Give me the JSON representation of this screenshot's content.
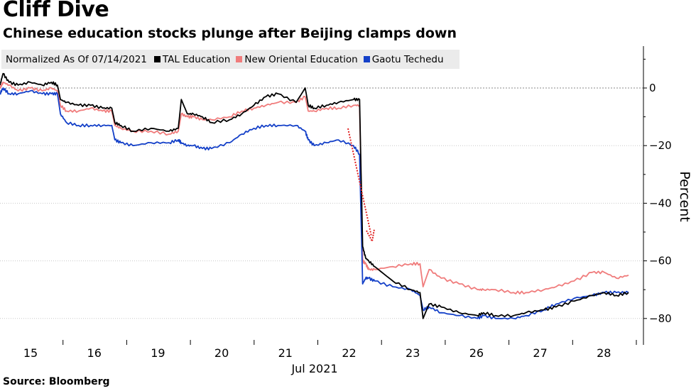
{
  "chart_data": {
    "type": "line",
    "title": "Cliff Dive",
    "subtitle": "Chinese education stocks plunge after Beijing clamps down",
    "legend_note": "Normalized As Of 07/14/2021",
    "source": "Source: Bloomberg",
    "ylabel": "Percent",
    "xlabel": "Jul 2021",
    "ylim": [
      -88,
      14
    ],
    "yticks": [
      0,
      -20,
      -40,
      -60,
      -80
    ],
    "ytick_labels": [
      "0",
      "−20",
      "−40",
      "−60",
      "−80"
    ],
    "x_range": [
      0,
      10.4
    ],
    "categories": [
      "15",
      "16",
      "19",
      "20",
      "21",
      "22",
      "23",
      "26",
      "27",
      "28"
    ],
    "annotation": "dotted red arrow indicating the plunge on Jul 22-23",
    "series": [
      {
        "name": "TAL Education",
        "color": "#000000",
        "x": [
          0.0,
          0.05,
          0.15,
          0.3,
          0.5,
          0.7,
          0.85,
          0.95,
          1.0,
          1.1,
          1.3,
          1.5,
          1.7,
          1.85,
          1.9,
          2.0,
          2.2,
          2.5,
          2.8,
          2.95,
          3.0,
          3.1,
          3.2,
          3.35,
          3.5,
          3.8,
          4.0,
          4.2,
          4.4,
          4.6,
          4.9,
          5.05,
          5.1,
          5.2,
          5.4,
          5.6,
          5.85,
          5.95,
          6.0,
          6.05,
          6.1,
          6.2,
          6.5,
          6.8,
          6.95,
          7.0,
          7.1,
          7.3,
          7.6,
          7.9,
          8.0,
          8.2,
          8.5,
          8.7,
          9.0,
          9.2,
          9.5,
          9.8,
          10.0,
          10.2,
          10.4
        ],
        "values": [
          1,
          5,
          2,
          1,
          2,
          1,
          2,
          1,
          -4,
          -5,
          -6,
          -6,
          -7,
          -7,
          -12,
          -13,
          -15,
          -14,
          -15,
          -14,
          -4,
          -9,
          -9,
          -10,
          -12,
          -11,
          -9,
          -6,
          -3,
          -2,
          -5,
          0,
          -6,
          -7,
          -6,
          -5,
          -4,
          -4,
          -55,
          -59,
          -60,
          -62,
          -67,
          -70,
          -71,
          -80,
          -75,
          -76,
          -78,
          -79,
          -78,
          -79,
          -79,
          -78,
          -77,
          -76,
          -74,
          -72,
          -71,
          -72,
          -71
        ]
      },
      {
        "name": "New Oriental Education",
        "color": "#f07c7c",
        "x": [
          0.0,
          0.05,
          0.15,
          0.3,
          0.5,
          0.7,
          0.85,
          0.95,
          1.0,
          1.1,
          1.3,
          1.5,
          1.7,
          1.85,
          1.9,
          2.0,
          2.2,
          2.5,
          2.8,
          2.95,
          3.0,
          3.1,
          3.2,
          3.35,
          3.5,
          3.8,
          4.0,
          4.2,
          4.4,
          4.6,
          4.9,
          5.05,
          5.1,
          5.2,
          5.4,
          5.6,
          5.85,
          5.95,
          6.0,
          6.05,
          6.1,
          6.2,
          6.5,
          6.8,
          6.95,
          7.0,
          7.1,
          7.3,
          7.6,
          7.9,
          8.0,
          8.2,
          8.5,
          8.7,
          9.0,
          9.2,
          9.5,
          9.8,
          10.0,
          10.2,
          10.4
        ],
        "values": [
          0,
          2,
          1,
          -1,
          0,
          -1,
          0,
          -1,
          -6,
          -8,
          -8,
          -7,
          -8,
          -8,
          -13,
          -14,
          -15,
          -15,
          -16,
          -15,
          -9,
          -10,
          -10,
          -11,
          -11,
          -10,
          -8,
          -7,
          -6,
          -5,
          -5,
          -3,
          -8,
          -8,
          -7,
          -7,
          -6,
          -6,
          -60,
          -61,
          -63,
          -63,
          -62,
          -61,
          -61,
          -69,
          -63,
          -66,
          -68,
          -70,
          -70,
          -70,
          -71,
          -71,
          -70,
          -69,
          -67,
          -64,
          -64,
          -66,
          -65
        ]
      },
      {
        "name": "Gaotu Techedu",
        "color": "#1440c8",
        "x": [
          0.0,
          0.05,
          0.15,
          0.3,
          0.5,
          0.7,
          0.85,
          0.95,
          1.0,
          1.1,
          1.3,
          1.5,
          1.7,
          1.85,
          1.9,
          2.0,
          2.2,
          2.5,
          2.8,
          2.95,
          3.0,
          3.1,
          3.2,
          3.35,
          3.5,
          3.8,
          4.0,
          4.2,
          4.4,
          4.6,
          4.9,
          5.05,
          5.1,
          5.2,
          5.4,
          5.6,
          5.85,
          5.95,
          6.0,
          6.05,
          6.1,
          6.2,
          6.5,
          6.8,
          6.95,
          7.0,
          7.1,
          7.3,
          7.6,
          7.9,
          8.0,
          8.2,
          8.5,
          8.7,
          9.0,
          9.2,
          9.5,
          9.8,
          10.0,
          10.2,
          10.4
        ],
        "values": [
          -2,
          0,
          -2,
          -2,
          -1,
          -2,
          -2,
          -2,
          -9,
          -12,
          -13,
          -13,
          -13,
          -13,
          -18,
          -19,
          -20,
          -19,
          -19,
          -18,
          -19,
          -20,
          -20,
          -21,
          -21,
          -19,
          -16,
          -14,
          -13,
          -13,
          -13,
          -15,
          -18,
          -20,
          -19,
          -18,
          -20,
          -23,
          -68,
          -66,
          -66,
          -67,
          -69,
          -70,
          -72,
          -77,
          -76,
          -78,
          -79,
          -80,
          -79,
          -80,
          -80,
          -79,
          -77,
          -75,
          -73,
          -72,
          -71,
          -71,
          -71
        ]
      }
    ]
  }
}
